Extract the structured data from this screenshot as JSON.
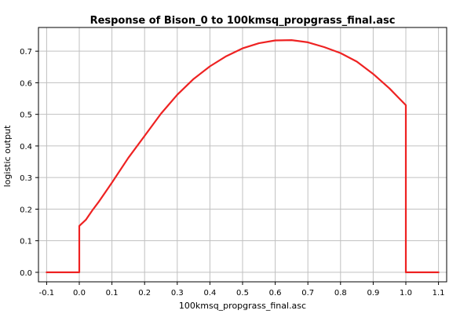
{
  "chart_data": {
    "type": "line",
    "title": "Response of Bison_0 to 100kmsq_propgrass_final.asc",
    "xlabel": "100kmsq_propgrass_final.asc",
    "ylabel": "logistic output",
    "xlim": [
      -0.125,
      1.125
    ],
    "ylim": [
      -0.03,
      0.775
    ],
    "x_ticks": [
      -0.1,
      0.0,
      0.1,
      0.2,
      0.3,
      0.4,
      0.5,
      0.6,
      0.7,
      0.8,
      0.9,
      1.0,
      1.1
    ],
    "x_tick_labels": [
      "-0.1",
      "0.0",
      "0.1",
      "0.2",
      "0.3",
      "0.4",
      "0.5",
      "0.6",
      "0.7",
      "0.8",
      "0.9",
      "1.0",
      "1.1"
    ],
    "y_ticks": [
      0.0,
      0.1,
      0.2,
      0.3,
      0.4,
      0.5,
      0.6,
      0.7
    ],
    "y_tick_labels": [
      "0.0",
      "0.1",
      "0.2",
      "0.3",
      "0.4",
      "0.5",
      "0.6",
      "0.7"
    ],
    "grid": true,
    "series": [
      {
        "color": "#ee2222",
        "x": [
          -0.1,
          0.0,
          0.0,
          0.02,
          0.04,
          0.06,
          0.08,
          0.1,
          0.15,
          0.2,
          0.25,
          0.3,
          0.35,
          0.4,
          0.45,
          0.5,
          0.55,
          0.6,
          0.65,
          0.7,
          0.75,
          0.8,
          0.85,
          0.9,
          0.95,
          1.0,
          1.0,
          1.1
        ],
        "y": [
          0.0,
          0.0,
          0.147,
          0.166,
          0.196,
          0.224,
          0.254,
          0.284,
          0.362,
          0.432,
          0.502,
          0.562,
          0.612,
          0.652,
          0.684,
          0.709,
          0.725,
          0.734,
          0.735,
          0.728,
          0.713,
          0.694,
          0.667,
          0.628,
          0.582,
          0.529,
          0.0,
          0.0
        ]
      }
    ]
  }
}
